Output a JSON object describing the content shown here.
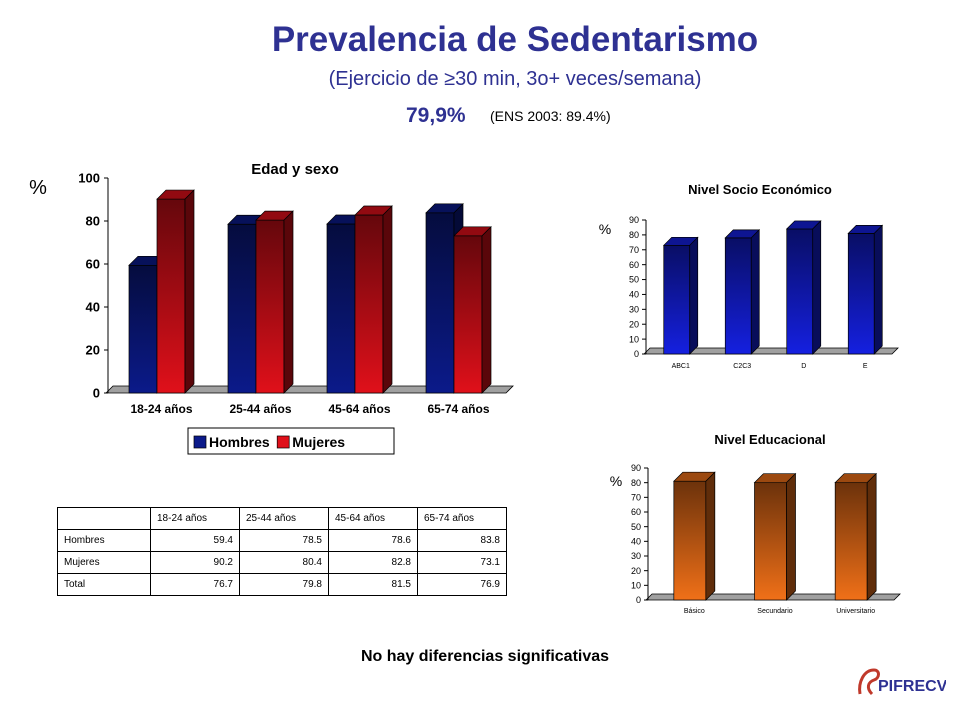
{
  "header": {
    "title": "Prevalencia de Sedentarismo",
    "subtitle": "(Ejercicio de ≥30 min, 3o+ veces/semana)",
    "overall": "79,9%",
    "overall_ref": "(ENS 2003: 89.4%)"
  },
  "footer": {
    "note": "No hay diferencias significativas",
    "logo_text": "PIFRECV"
  },
  "table": {
    "columns": [
      "18-24 años",
      "25-44 años",
      "45-64 años",
      "65-74 años"
    ],
    "rows": [
      {
        "label": "Hombres",
        "values": [
          "59.4",
          "78.5",
          "78.6",
          "83.8"
        ]
      },
      {
        "label": "Mujeres",
        "values": [
          "90.2",
          "80.4",
          "82.8",
          "73.1"
        ]
      },
      {
        "label": "Total",
        "values": [
          "76.7",
          "79.8",
          "81.5",
          "76.9"
        ]
      }
    ]
  },
  "chart_data": [
    {
      "type": "bar",
      "title": "Edad y sexo",
      "ylabel": "%",
      "ylim": [
        0,
        100
      ],
      "yticks": [
        0,
        20,
        40,
        60,
        80,
        100
      ],
      "categories": [
        "18-24 años",
        "25-44 años",
        "45-64 años",
        "65-74 años"
      ],
      "series": [
        {
          "name": "Hombres",
          "values": [
            59.4,
            78.5,
            78.6,
            83.8
          ],
          "color": "#0b1a8a"
        },
        {
          "name": "Mujeres",
          "values": [
            90.2,
            80.4,
            82.8,
            73.1
          ],
          "color": "#e0101a"
        }
      ],
      "legend": "bottom",
      "grid": false
    },
    {
      "type": "bar",
      "title": "Nivel Socio Económico",
      "ylabel": "%",
      "ylim": [
        0,
        90
      ],
      "yticks": [
        0,
        10,
        20,
        30,
        40,
        50,
        60,
        70,
        80,
        90
      ],
      "categories": [
        "ABC1",
        "C2C3",
        "D",
        "E"
      ],
      "values": [
        73,
        78,
        84,
        81
      ],
      "color": "#1520e0",
      "grid": false
    },
    {
      "type": "bar",
      "title": "Nivel Educacional",
      "ylabel": "%",
      "ylim": [
        0,
        90
      ],
      "yticks": [
        0,
        10,
        20,
        30,
        40,
        50,
        60,
        70,
        80,
        90
      ],
      "categories": [
        "Básico",
        "Secundario",
        "Universitario"
      ],
      "values": [
        81,
        80,
        80
      ],
      "color": "#f07018",
      "grid": false
    }
  ]
}
